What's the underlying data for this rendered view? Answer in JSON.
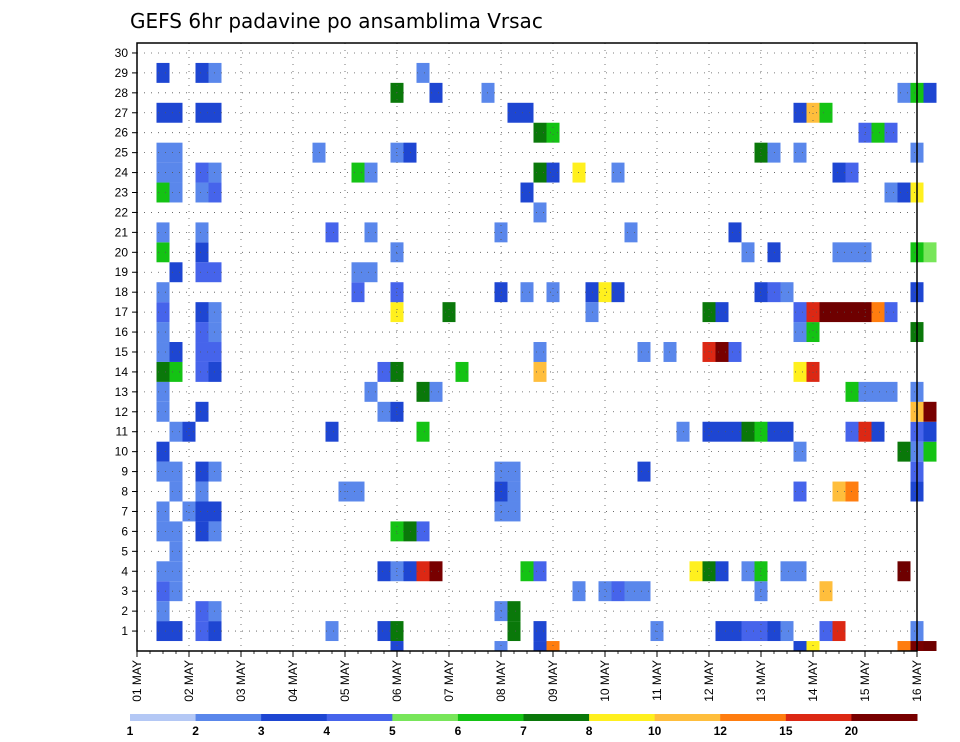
{
  "chart_data": {
    "type": "heatmap",
    "title": "GEFS 6hr padavine po ansamblima Vrsac",
    "y_ticks": [
      "1",
      "2",
      "3",
      "4",
      "5",
      "6",
      "7",
      "8",
      "9",
      "10",
      "11",
      "12",
      "13",
      "14",
      "15",
      "16",
      "17",
      "18",
      "19",
      "20",
      "21",
      "22",
      "23",
      "24",
      "25",
      "26",
      "27",
      "28",
      "29",
      "30"
    ],
    "x_ticks": [
      "01 MAY",
      "02 MAY",
      "03 MAY",
      "04 MAY",
      "05 MAY",
      "06 MAY",
      "07 MAY",
      "08 MAY",
      "09 MAY",
      "10 MAY",
      "11 MAY",
      "12 MAY",
      "13 MAY",
      "14 MAY",
      "15 MAY",
      "16 MAY"
    ],
    "x_range": [
      "01 MAY",
      "16 MAY"
    ],
    "y_range": [
      0,
      30
    ],
    "grid": true,
    "legend": "bottom colorbar",
    "colorbar": {
      "levels": [
        "1",
        "2",
        "3",
        "4",
        "5",
        "6",
        "7",
        "8",
        "10",
        "12",
        "15",
        "20"
      ],
      "colors": [
        "#b4c8f5",
        "#5a87eb",
        "#1e46d2",
        "#4664eb",
        "#78e65a",
        "#14c314",
        "#0a780a",
        "#fff01e",
        "#ffbe3c",
        "#ff7d0f",
        "#dc2814",
        "#780000",
        "#6e0000"
      ]
    },
    "cells": [
      [
        1.5,
        1,
        2
      ],
      [
        1.75,
        1,
        2
      ],
      [
        2.25,
        1,
        3
      ],
      [
        2.5,
        1,
        2
      ],
      [
        4.75,
        1,
        1
      ],
      [
        5.75,
        1,
        2
      ],
      [
        6.0,
        1,
        6
      ],
      [
        8.25,
        1,
        6
      ],
      [
        8.75,
        1,
        2
      ],
      [
        11.0,
        1,
        1
      ],
      [
        12.25,
        1,
        2
      ],
      [
        12.5,
        1,
        2
      ],
      [
        12.75,
        1,
        3
      ],
      [
        13.0,
        1,
        3
      ],
      [
        13.25,
        1,
        2
      ],
      [
        13.5,
        1,
        1
      ],
      [
        14.25,
        1,
        3
      ],
      [
        14.5,
        1,
        10
      ],
      [
        16.0,
        1,
        1
      ],
      [
        1.5,
        2,
        1
      ],
      [
        2.25,
        2,
        3
      ],
      [
        2.5,
        2,
        1
      ],
      [
        8.0,
        2,
        1
      ],
      [
        8.25,
        2,
        6
      ],
      [
        1.5,
        3,
        3
      ],
      [
        1.75,
        3,
        1
      ],
      [
        9.5,
        3,
        1
      ],
      [
        10.0,
        3,
        1
      ],
      [
        10.25,
        3,
        3
      ],
      [
        10.5,
        3,
        1
      ],
      [
        10.75,
        3,
        1
      ],
      [
        13.0,
        3,
        1
      ],
      [
        14.25,
        3,
        8
      ],
      [
        1.5,
        4,
        1
      ],
      [
        1.75,
        4,
        1
      ],
      [
        5.75,
        4,
        2
      ],
      [
        6.0,
        4,
        1
      ],
      [
        6.25,
        4,
        2
      ],
      [
        6.5,
        4,
        10
      ],
      [
        6.75,
        4,
        11
      ],
      [
        8.5,
        4,
        5
      ],
      [
        8.75,
        4,
        3
      ],
      [
        11.75,
        4,
        7
      ],
      [
        12.0,
        4,
        6
      ],
      [
        12.25,
        4,
        2
      ],
      [
        12.75,
        4,
        1
      ],
      [
        13.0,
        4,
        5
      ],
      [
        13.5,
        4,
        1
      ],
      [
        13.75,
        4,
        1
      ],
      [
        15.75,
        4,
        12
      ],
      [
        1.75,
        5,
        1
      ],
      [
        1.5,
        6,
        1
      ],
      [
        1.75,
        6,
        1
      ],
      [
        2.25,
        6,
        2
      ],
      [
        2.5,
        6,
        1
      ],
      [
        6.0,
        6,
        5
      ],
      [
        6.25,
        6,
        6
      ],
      [
        6.5,
        6,
        3
      ],
      [
        1.5,
        7,
        1
      ],
      [
        2.0,
        7,
        1
      ],
      [
        2.25,
        7,
        2
      ],
      [
        2.5,
        7,
        2
      ],
      [
        8.0,
        7,
        1
      ],
      [
        8.25,
        7,
        1
      ],
      [
        1.75,
        8,
        1
      ],
      [
        2.25,
        8,
        1
      ],
      [
        5.0,
        8,
        1
      ],
      [
        5.25,
        8,
        1
      ],
      [
        8.0,
        8,
        2
      ],
      [
        8.25,
        8,
        1
      ],
      [
        13.75,
        8,
        3
      ],
      [
        14.5,
        8,
        8
      ],
      [
        14.75,
        8,
        9
      ],
      [
        16.0,
        8,
        2
      ],
      [
        1.5,
        9,
        1
      ],
      [
        1.75,
        9,
        1
      ],
      [
        2.25,
        9,
        2
      ],
      [
        2.5,
        9,
        1
      ],
      [
        8.0,
        9,
        1
      ],
      [
        8.25,
        9,
        1
      ],
      [
        10.75,
        9,
        2
      ],
      [
        16.0,
        9,
        3
      ],
      [
        1.5,
        10,
        2
      ],
      [
        13.75,
        10,
        1
      ],
      [
        15.75,
        10,
        6
      ],
      [
        16.0,
        10,
        1
      ],
      [
        16.25,
        10,
        5
      ],
      [
        1.75,
        11,
        1
      ],
      [
        2.0,
        11,
        2
      ],
      [
        4.75,
        11,
        2
      ],
      [
        6.5,
        11,
        5
      ],
      [
        11.5,
        11,
        1
      ],
      [
        12.0,
        11,
        2
      ],
      [
        12.25,
        11,
        2
      ],
      [
        12.5,
        11,
        2
      ],
      [
        12.75,
        11,
        6
      ],
      [
        13.0,
        11,
        5
      ],
      [
        13.25,
        11,
        2
      ],
      [
        13.5,
        11,
        2
      ],
      [
        14.75,
        11,
        3
      ],
      [
        15.0,
        11,
        10
      ],
      [
        15.25,
        11,
        2
      ],
      [
        16.0,
        11,
        3
      ],
      [
        16.25,
        11,
        2
      ],
      [
        1.5,
        12,
        1
      ],
      [
        2.25,
        12,
        2
      ],
      [
        5.75,
        12,
        1
      ],
      [
        6.0,
        12,
        2
      ],
      [
        16.0,
        12,
        8
      ],
      [
        16.25,
        12,
        11
      ],
      [
        1.5,
        13,
        1
      ],
      [
        5.5,
        13,
        1
      ],
      [
        6.5,
        13,
        6
      ],
      [
        6.75,
        13,
        1
      ],
      [
        14.75,
        13,
        5
      ],
      [
        15.0,
        13,
        1
      ],
      [
        15.25,
        13,
        1
      ],
      [
        15.5,
        13,
        1
      ],
      [
        16.0,
        13,
        1
      ],
      [
        1.5,
        14,
        6
      ],
      [
        1.75,
        14,
        5
      ],
      [
        2.25,
        14,
        3
      ],
      [
        2.5,
        14,
        2
      ],
      [
        5.75,
        14,
        3
      ],
      [
        6.0,
        14,
        6
      ],
      [
        7.25,
        14,
        5
      ],
      [
        8.75,
        14,
        8
      ],
      [
        13.75,
        14,
        7
      ],
      [
        14.0,
        14,
        10
      ],
      [
        1.5,
        15,
        1
      ],
      [
        1.75,
        15,
        2
      ],
      [
        2.25,
        15,
        3
      ],
      [
        2.5,
        15,
        3
      ],
      [
        8.75,
        15,
        1
      ],
      [
        10.75,
        15,
        1
      ],
      [
        11.25,
        15,
        1
      ],
      [
        12.0,
        15,
        10
      ],
      [
        12.25,
        15,
        11
      ],
      [
        12.5,
        15,
        3
      ],
      [
        1.5,
        16,
        1
      ],
      [
        2.25,
        16,
        3
      ],
      [
        2.5,
        16,
        1
      ],
      [
        13.75,
        16,
        1
      ],
      [
        14.0,
        16,
        5
      ],
      [
        16.0,
        16,
        6
      ],
      [
        1.5,
        17,
        3
      ],
      [
        2.25,
        17,
        2
      ],
      [
        2.5,
        17,
        1
      ],
      [
        6.0,
        17,
        7
      ],
      [
        7.0,
        17,
        6
      ],
      [
        9.75,
        17,
        1
      ],
      [
        12.0,
        17,
        6
      ],
      [
        12.25,
        17,
        2
      ],
      [
        13.75,
        17,
        3
      ],
      [
        14.0,
        17,
        10
      ],
      [
        14.25,
        17,
        12
      ],
      [
        14.5,
        17,
        12
      ],
      [
        14.75,
        17,
        12
      ],
      [
        15.0,
        17,
        12
      ],
      [
        15.25,
        17,
        9
      ],
      [
        15.5,
        17,
        3
      ],
      [
        1.5,
        18,
        1
      ],
      [
        5.25,
        18,
        3
      ],
      [
        6.0,
        18,
        3
      ],
      [
        8.0,
        18,
        2
      ],
      [
        8.5,
        18,
        1
      ],
      [
        9.0,
        18,
        1
      ],
      [
        9.75,
        18,
        2
      ],
      [
        10.0,
        18,
        7
      ],
      [
        10.25,
        18,
        2
      ],
      [
        13.0,
        18,
        2
      ],
      [
        13.25,
        18,
        3
      ],
      [
        13.5,
        18,
        1
      ],
      [
        16.0,
        18,
        2
      ],
      [
        1.75,
        19,
        2
      ],
      [
        2.25,
        19,
        3
      ],
      [
        2.5,
        19,
        3
      ],
      [
        5.25,
        19,
        1
      ],
      [
        5.5,
        19,
        1
      ],
      [
        1.5,
        20,
        5
      ],
      [
        2.25,
        20,
        2
      ],
      [
        6.0,
        20,
        1
      ],
      [
        12.75,
        20,
        1
      ],
      [
        13.25,
        20,
        2
      ],
      [
        14.5,
        20,
        1
      ],
      [
        14.75,
        20,
        1
      ],
      [
        15.0,
        20,
        1
      ],
      [
        16.0,
        20,
        5
      ],
      [
        16.25,
        20,
        4
      ],
      [
        1.5,
        21,
        1
      ],
      [
        2.25,
        21,
        1
      ],
      [
        4.75,
        21,
        3
      ],
      [
        5.5,
        21,
        1
      ],
      [
        8.0,
        21,
        1
      ],
      [
        10.5,
        21,
        1
      ],
      [
        12.5,
        21,
        2
      ],
      [
        8.75,
        22,
        1
      ],
      [
        1.5,
        23,
        5
      ],
      [
        1.75,
        23,
        1
      ],
      [
        2.25,
        23,
        1
      ],
      [
        2.5,
        23,
        3
      ],
      [
        8.5,
        23,
        2
      ],
      [
        15.5,
        23,
        1
      ],
      [
        15.75,
        23,
        2
      ],
      [
        16.0,
        23,
        7
      ],
      [
        1.5,
        24,
        1
      ],
      [
        1.75,
        24,
        1
      ],
      [
        2.25,
        24,
        3
      ],
      [
        2.5,
        24,
        1
      ],
      [
        5.25,
        24,
        5
      ],
      [
        5.5,
        24,
        1
      ],
      [
        8.75,
        24,
        6
      ],
      [
        9.0,
        24,
        2
      ],
      [
        9.5,
        24,
        7
      ],
      [
        10.25,
        24,
        1
      ],
      [
        14.5,
        24,
        2
      ],
      [
        14.75,
        24,
        3
      ],
      [
        1.5,
        25,
        1
      ],
      [
        1.75,
        25,
        1
      ],
      [
        4.5,
        25,
        1
      ],
      [
        6.0,
        25,
        1
      ],
      [
        6.25,
        25,
        2
      ],
      [
        13.0,
        25,
        6
      ],
      [
        13.25,
        25,
        1
      ],
      [
        13.75,
        25,
        1
      ],
      [
        16.0,
        25,
        1
      ],
      [
        8.75,
        26,
        6
      ],
      [
        9.0,
        26,
        5
      ],
      [
        15.0,
        26,
        3
      ],
      [
        15.25,
        26,
        5
      ],
      [
        15.5,
        26,
        3
      ],
      [
        1.5,
        27,
        2
      ],
      [
        1.75,
        27,
        2
      ],
      [
        2.25,
        27,
        2
      ],
      [
        2.5,
        27,
        2
      ],
      [
        8.25,
        27,
        2
      ],
      [
        8.5,
        27,
        2
      ],
      [
        13.75,
        27,
        2
      ],
      [
        14.0,
        27,
        8
      ],
      [
        14.25,
        27,
        5
      ],
      [
        6.0,
        28,
        6
      ],
      [
        6.75,
        28,
        2
      ],
      [
        7.75,
        28,
        1
      ],
      [
        15.75,
        28,
        1
      ],
      [
        16.0,
        28,
        5
      ],
      [
        16.25,
        28,
        2
      ],
      [
        1.5,
        29,
        2
      ],
      [
        2.25,
        29,
        2
      ],
      [
        2.5,
        29,
        1
      ],
      [
        6.5,
        29,
        1
      ],
      [
        6.0,
        0,
        2
      ],
      [
        8.0,
        0,
        1
      ],
      [
        8.75,
        0,
        2
      ],
      [
        9.0,
        0,
        9
      ],
      [
        13.75,
        0,
        2
      ],
      [
        14.0,
        0,
        7
      ],
      [
        15.75,
        0,
        9
      ],
      [
        16.0,
        0,
        11
      ],
      [
        16.25,
        0,
        12
      ]
    ]
  }
}
